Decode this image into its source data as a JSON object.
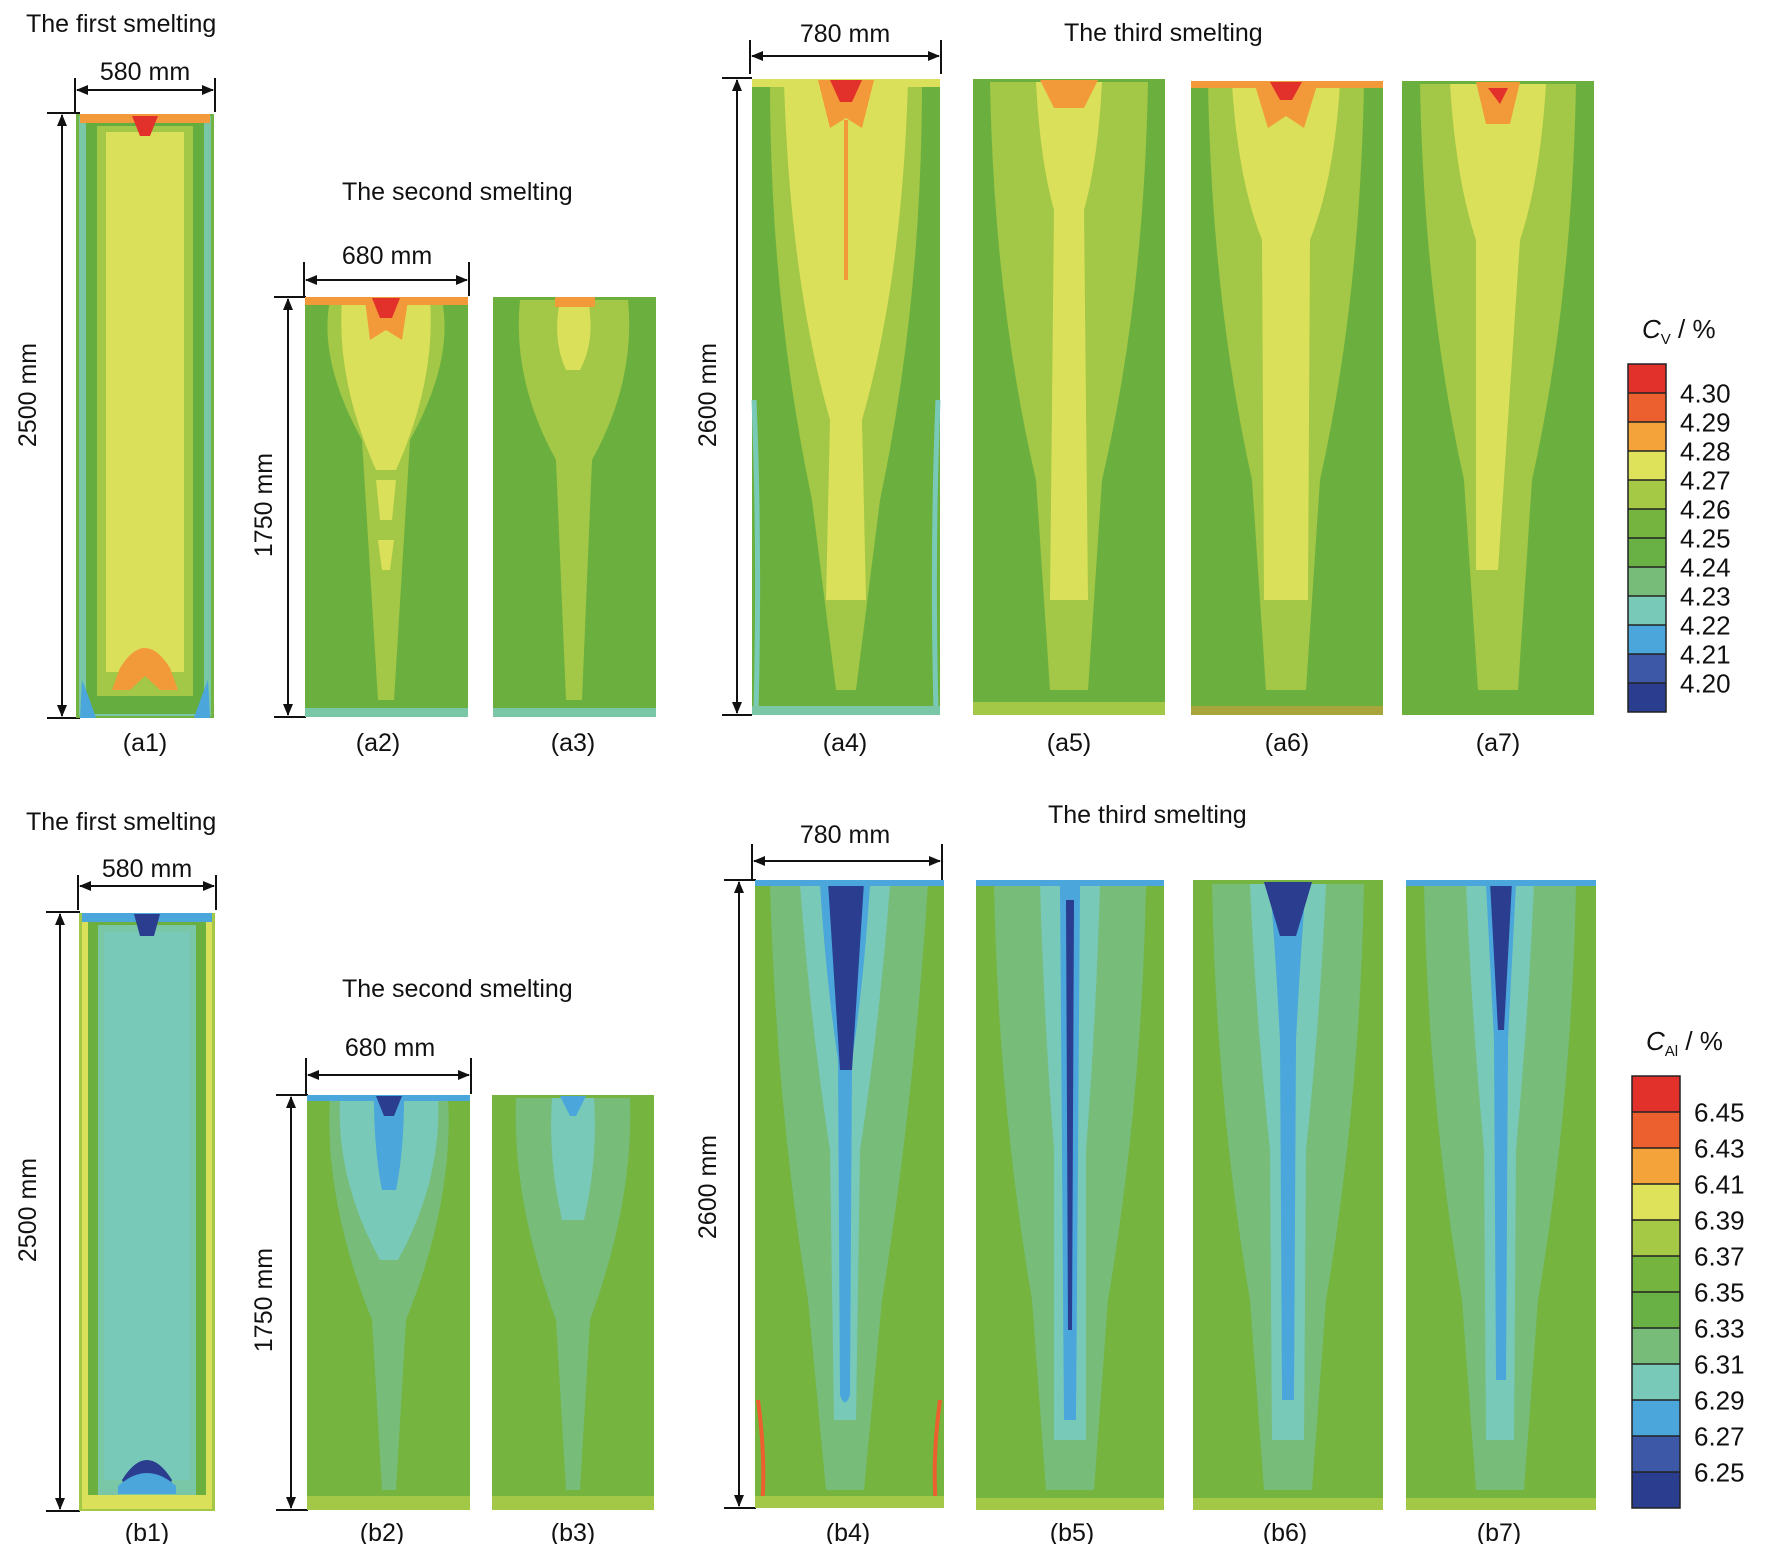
{
  "row_a": {
    "first_title": "The first smelting",
    "second_title": "The second smelting",
    "third_title": "The third smelting",
    "width1": "580 mm",
    "width2": "680 mm",
    "width3": "780 mm",
    "height1": "2500 mm",
    "height2": "1750 mm",
    "height3": "2600 mm",
    "panels": [
      "(a1)",
      "(a2)",
      "(a3)",
      "(a4)",
      "(a5)",
      "(a6)",
      "(a7)"
    ],
    "legend": {
      "label_main": "C",
      "label_sub": "V",
      "label_unit": " / %",
      "colors": [
        "#e2312a",
        "#ec5f2f",
        "#f4a23a",
        "#dde25a",
        "#a5c845",
        "#74b43f",
        "#69b045",
        "#78bc7a",
        "#79c9b9",
        "#4aa6db",
        "#3d58a6",
        "#2a3d8f"
      ],
      "ticks": [
        "4.30",
        "4.29",
        "4.28",
        "4.27",
        "4.26",
        "4.25",
        "4.24",
        "4.23",
        "4.22",
        "4.21",
        "4.20"
      ]
    }
  },
  "row_b": {
    "first_title": "The first smelting",
    "second_title": "The second smelting",
    "third_title": "The third smelting",
    "width1": "580 mm",
    "width2": "680 mm",
    "width3": "780 mm",
    "height1": "2500 mm",
    "height2": "1750 mm",
    "height3": "2600 mm",
    "panels": [
      "(b1)",
      "(b2)",
      "(b3)",
      "(b4)",
      "(b5)",
      "(b6)",
      "(b7)"
    ],
    "legend": {
      "label_main": "C",
      "label_sub": "Al",
      "label_unit": " / %",
      "colors": [
        "#e2312a",
        "#ec5f2f",
        "#f4a23a",
        "#dde25a",
        "#a5c845",
        "#74b43f",
        "#69b045",
        "#78bc7a",
        "#79c9b9",
        "#4aa6db",
        "#3d58a6",
        "#2a3d8f"
      ],
      "ticks": [
        "6.45",
        "6.43",
        "6.41",
        "6.39",
        "6.37",
        "6.35",
        "6.33",
        "6.31",
        "6.29",
        "6.27",
        "6.25"
      ]
    }
  }
}
